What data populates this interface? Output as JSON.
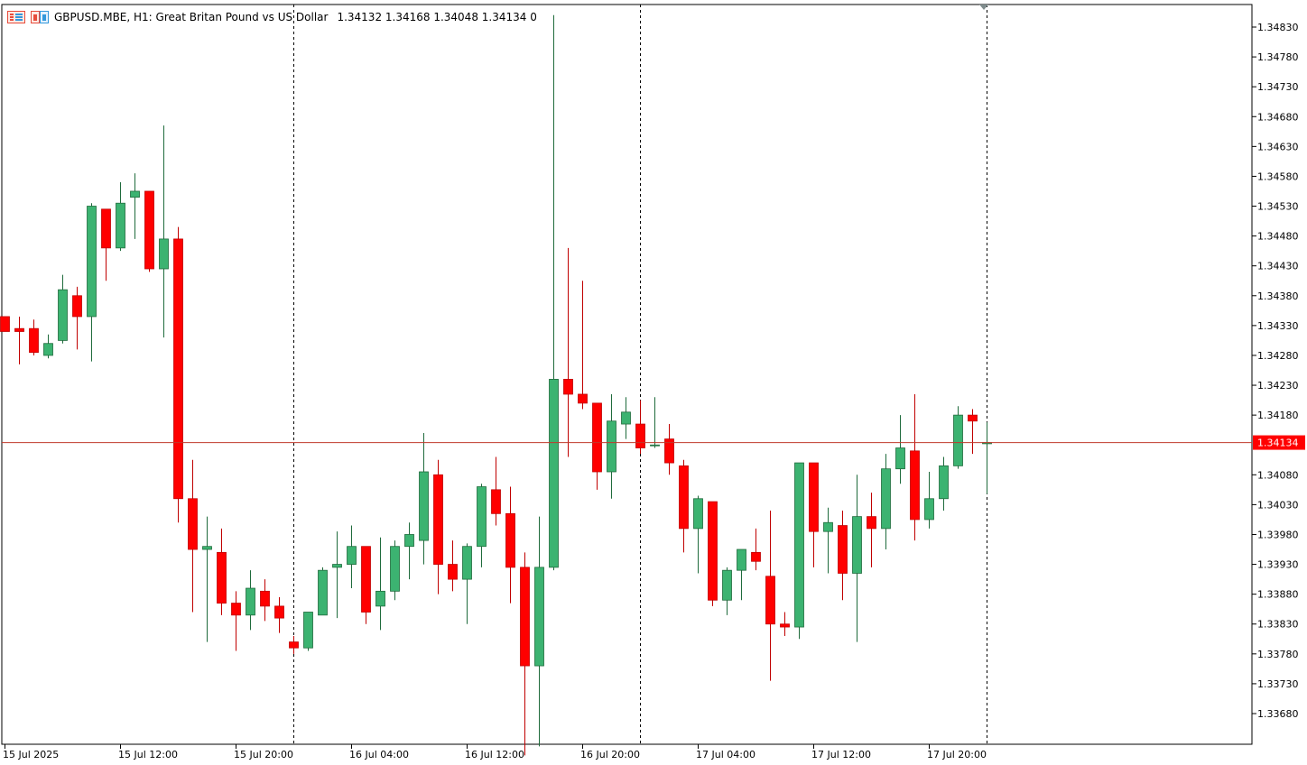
{
  "header": {
    "symbol_line": "GBPUSD.MBE, H1:  Great Britan Pound vs US Dollar",
    "ohlc_line": "1.34132 1.34168 1.34048 1.34134  0"
  },
  "colors": {
    "bull": "#3cb371",
    "bear": "#ff0000",
    "bull_border": "#1f6b3c",
    "bear_border": "#c00000",
    "axis": "#000000",
    "price_line": "#c0392b",
    "price_label_bg": "#ff0000",
    "price_label_text": "#ffffff",
    "period_sep": "#000000"
  },
  "icons": [
    "chart-menu-icon",
    "chart-flag-icon"
  ],
  "chart_data": {
    "type": "candlestick",
    "title": "",
    "xlabel": "",
    "ylabel": "",
    "timeframe": "H1",
    "ylim": [
      1.33625,
      1.34875
    ],
    "y_ticks": [
      "1.34830",
      "1.34780",
      "1.34730",
      "1.34680",
      "1.34630",
      "1.34580",
      "1.34530",
      "1.34480",
      "1.34430",
      "1.34380",
      "1.34330",
      "1.34280",
      "1.34230",
      "1.34180",
      "1.34080",
      "1.34030",
      "1.33980",
      "1.33930",
      "1.33880",
      "1.33830",
      "1.33780",
      "1.33730",
      "1.33680"
    ],
    "x_tick_labels": [
      {
        "label": "15 Jul 2025",
        "index": 0
      },
      {
        "label": "15 Jul 12:00",
        "index": 8
      },
      {
        "label": "15 Jul 20:00",
        "index": 16
      },
      {
        "label": "16 Jul 04:00",
        "index": 24
      },
      {
        "label": "16 Jul 12:00",
        "index": 32
      },
      {
        "label": "16 Jul 20:00",
        "index": 40
      },
      {
        "label": "17 Jul 04:00",
        "index": 48
      },
      {
        "label": "17 Jul 12:00",
        "index": 56
      },
      {
        "label": "17 Jul 20:00",
        "index": 64
      }
    ],
    "period_separators": [
      20,
      44,
      68
    ],
    "current_price": "1.34134",
    "grid": false,
    "candles": [
      {
        "o": 1.34345,
        "h": 1.34345,
        "l": 1.3432,
        "c": 1.3432
      },
      {
        "o": 1.34325,
        "h": 1.34345,
        "l": 1.34265,
        "c": 1.3432
      },
      {
        "o": 1.34325,
        "h": 1.3434,
        "l": 1.3428,
        "c": 1.34285
      },
      {
        "o": 1.3428,
        "h": 1.34315,
        "l": 1.34275,
        "c": 1.343
      },
      {
        "o": 1.34305,
        "h": 1.34415,
        "l": 1.343,
        "c": 1.3439
      },
      {
        "o": 1.3438,
        "h": 1.34395,
        "l": 1.3429,
        "c": 1.34345
      },
      {
        "o": 1.34345,
        "h": 1.34535,
        "l": 1.3427,
        "c": 1.3453
      },
      {
        "o": 1.34525,
        "h": 1.34525,
        "l": 1.34405,
        "c": 1.3446
      },
      {
        "o": 1.3446,
        "h": 1.3457,
        "l": 1.34455,
        "c": 1.34535
      },
      {
        "o": 1.34545,
        "h": 1.34585,
        "l": 1.34475,
        "c": 1.34555
      },
      {
        "o": 1.34555,
        "h": 1.34555,
        "l": 1.3442,
        "c": 1.34425
      },
      {
        "o": 1.34425,
        "h": 1.34665,
        "l": 1.3431,
        "c": 1.34475
      },
      {
        "o": 1.34475,
        "h": 1.34495,
        "l": 1.34,
        "c": 1.3404
      },
      {
        "o": 1.3404,
        "h": 1.34105,
        "l": 1.3385,
        "c": 1.33955
      },
      {
        "o": 1.33955,
        "h": 1.3401,
        "l": 1.338,
        "c": 1.3396
      },
      {
        "o": 1.3395,
        "h": 1.3399,
        "l": 1.33845,
        "c": 1.33865
      },
      {
        "o": 1.33865,
        "h": 1.33885,
        "l": 1.33785,
        "c": 1.33845
      },
      {
        "o": 1.33845,
        "h": 1.3392,
        "l": 1.3382,
        "c": 1.3389
      },
      {
        "o": 1.33885,
        "h": 1.33905,
        "l": 1.33835,
        "c": 1.3386
      },
      {
        "o": 1.3386,
        "h": 1.33875,
        "l": 1.33815,
        "c": 1.3384
      },
      {
        "o": 1.338,
        "h": 1.3381,
        "l": 1.3378,
        "c": 1.3379
      },
      {
        "o": 1.3379,
        "h": 1.3385,
        "l": 1.33785,
        "c": 1.3385
      },
      {
        "o": 1.33845,
        "h": 1.33925,
        "l": 1.33845,
        "c": 1.3392
      },
      {
        "o": 1.33925,
        "h": 1.33985,
        "l": 1.3384,
        "c": 1.3393
      },
      {
        "o": 1.3393,
        "h": 1.33995,
        "l": 1.3389,
        "c": 1.3396
      },
      {
        "o": 1.3396,
        "h": 1.3396,
        "l": 1.3383,
        "c": 1.3385
      },
      {
        "o": 1.3386,
        "h": 1.33975,
        "l": 1.3382,
        "c": 1.33885
      },
      {
        "o": 1.33885,
        "h": 1.3397,
        "l": 1.3387,
        "c": 1.3396
      },
      {
        "o": 1.3396,
        "h": 1.34,
        "l": 1.33905,
        "c": 1.3398
      },
      {
        "o": 1.3397,
        "h": 1.3415,
        "l": 1.3393,
        "c": 1.34085
      },
      {
        "o": 1.3408,
        "h": 1.34105,
        "l": 1.3388,
        "c": 1.3393
      },
      {
        "o": 1.3393,
        "h": 1.3397,
        "l": 1.33885,
        "c": 1.33905
      },
      {
        "o": 1.33905,
        "h": 1.33965,
        "l": 1.3383,
        "c": 1.3396
      },
      {
        "o": 1.3396,
        "h": 1.34065,
        "l": 1.33925,
        "c": 1.3406
      },
      {
        "o": 1.34055,
        "h": 1.3411,
        "l": 1.33995,
        "c": 1.34015
      },
      {
        "o": 1.34015,
        "h": 1.3406,
        "l": 1.33865,
        "c": 1.33925
      },
      {
        "o": 1.33925,
        "h": 1.3395,
        "l": 1.3361,
        "c": 1.3376
      },
      {
        "o": 1.3376,
        "h": 1.3401,
        "l": 1.33625,
        "c": 1.33925
      },
      {
        "o": 1.33925,
        "h": 1.3485,
        "l": 1.3392,
        "c": 1.3424
      },
      {
        "o": 1.3424,
        "h": 1.3446,
        "l": 1.3411,
        "c": 1.34215
      },
      {
        "o": 1.34215,
        "h": 1.34405,
        "l": 1.3419,
        "c": 1.342
      },
      {
        "o": 1.342,
        "h": 1.342,
        "l": 1.34055,
        "c": 1.34085
      },
      {
        "o": 1.34085,
        "h": 1.34215,
        "l": 1.3404,
        "c": 1.3417
      },
      {
        "o": 1.34165,
        "h": 1.3421,
        "l": 1.3414,
        "c": 1.34185
      },
      {
        "o": 1.34165,
        "h": 1.34205,
        "l": 1.34115,
        "c": 1.34125
      },
      {
        "o": 1.3413,
        "h": 1.3421,
        "l": 1.34125,
        "c": 1.3413
      },
      {
        "o": 1.3414,
        "h": 1.34165,
        "l": 1.3408,
        "c": 1.341
      },
      {
        "o": 1.34095,
        "h": 1.34105,
        "l": 1.3395,
        "c": 1.3399
      },
      {
        "o": 1.3399,
        "h": 1.34045,
        "l": 1.33915,
        "c": 1.3404
      },
      {
        "o": 1.34035,
        "h": 1.34035,
        "l": 1.3386,
        "c": 1.3387
      },
      {
        "o": 1.3387,
        "h": 1.33925,
        "l": 1.33845,
        "c": 1.3392
      },
      {
        "o": 1.3392,
        "h": 1.3395,
        "l": 1.3387,
        "c": 1.33955
      },
      {
        "o": 1.3395,
        "h": 1.3399,
        "l": 1.3392,
        "c": 1.33935
      },
      {
        "o": 1.3391,
        "h": 1.3402,
        "l": 1.33735,
        "c": 1.3383
      },
      {
        "o": 1.3383,
        "h": 1.3385,
        "l": 1.3381,
        "c": 1.33825
      },
      {
        "o": 1.33825,
        "h": 1.341,
        "l": 1.33805,
        "c": 1.341
      },
      {
        "o": 1.341,
        "h": 1.341,
        "l": 1.33925,
        "c": 1.33985
      },
      {
        "o": 1.33985,
        "h": 1.34025,
        "l": 1.33915,
        "c": 1.34
      },
      {
        "o": 1.33995,
        "h": 1.3402,
        "l": 1.3387,
        "c": 1.33915
      },
      {
        "o": 1.33915,
        "h": 1.3408,
        "l": 1.338,
        "c": 1.3401
      },
      {
        "o": 1.3401,
        "h": 1.3405,
        "l": 1.33925,
        "c": 1.3399
      },
      {
        "o": 1.3399,
        "h": 1.34115,
        "l": 1.33955,
        "c": 1.3409
      },
      {
        "o": 1.3409,
        "h": 1.3418,
        "l": 1.34065,
        "c": 1.34125
      },
      {
        "o": 1.3412,
        "h": 1.34215,
        "l": 1.3397,
        "c": 1.34005
      },
      {
        "o": 1.34005,
        "h": 1.34085,
        "l": 1.3399,
        "c": 1.3404
      },
      {
        "o": 1.3404,
        "h": 1.3411,
        "l": 1.3402,
        "c": 1.34095
      },
      {
        "o": 1.34095,
        "h": 1.34195,
        "l": 1.3409,
        "c": 1.3418
      },
      {
        "o": 1.3418,
        "h": 1.3419,
        "l": 1.34115,
        "c": 1.3417
      },
      {
        "o": 1.34132,
        "h": 1.34168,
        "l": 1.34048,
        "c": 1.34134
      }
    ]
  }
}
